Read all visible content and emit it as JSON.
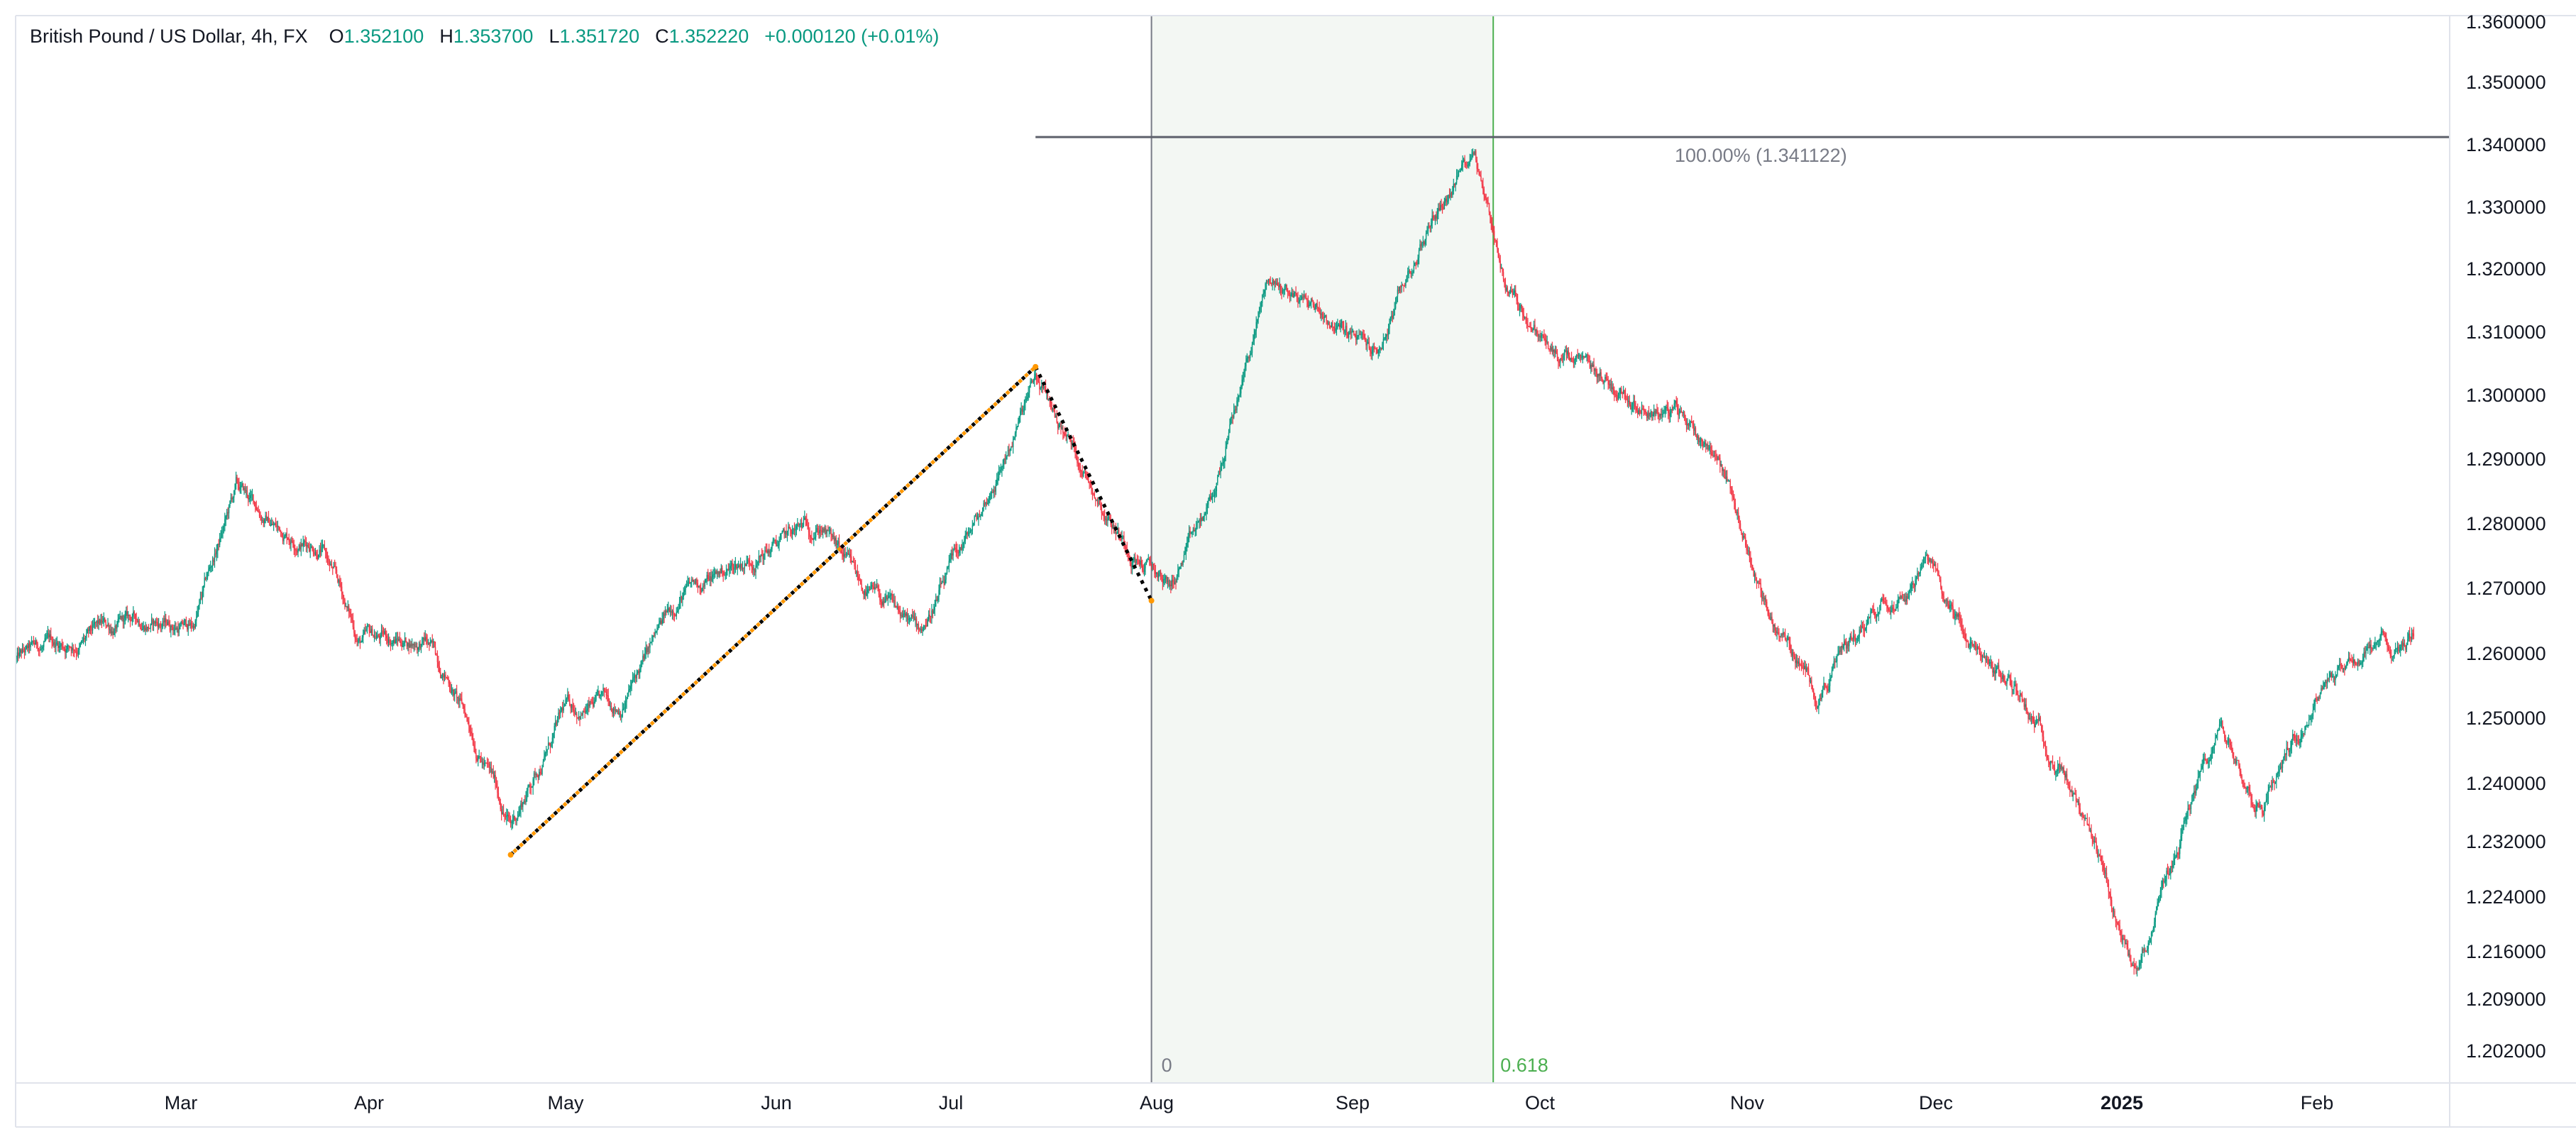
{
  "legend": {
    "symbol": "British Pound / US Dollar, 4h, FX",
    "o_label": "O",
    "o_value": "1.352100",
    "h_label": "H",
    "h_value": "1.353700",
    "l_label": "L",
    "l_value": "1.351720",
    "c_label": "C",
    "c_value": "1.352220",
    "change": "+0.000120 (+0.01%)"
  },
  "colors": {
    "up": "#089981",
    "down": "#f23645",
    "grid_border": "#e0e3eb",
    "fib_zone": "#f3f7f3",
    "fib_zero_line": "#787b86",
    "fib_618_line": "#4caf50",
    "level_line": "#5d606b",
    "pattern_black": "#000000",
    "pattern_orange": "#ff9800"
  },
  "chart_data": {
    "type": "candlestick",
    "x_axis": {
      "labels": [
        {
          "text": "Mar",
          "date": "2024-03"
        },
        {
          "text": "Apr",
          "date": "2024-04"
        },
        {
          "text": "May",
          "date": "2024-05"
        },
        {
          "text": "Jun",
          "date": "2024-06"
        },
        {
          "text": "Jul",
          "date": "2024-07"
        },
        {
          "text": "Aug",
          "date": "2024-08"
        },
        {
          "text": "Sep",
          "date": "2024-09"
        },
        {
          "text": "Oct",
          "date": "2024-10"
        },
        {
          "text": "Nov",
          "date": "2024-11"
        },
        {
          "text": "Dec",
          "date": "2024-12"
        },
        {
          "text": "2025",
          "date": "2025-01",
          "bold": true
        },
        {
          "text": "Feb",
          "date": "2025-02"
        }
      ],
      "range": [
        "2024-02-01",
        "2025-02-28"
      ]
    },
    "y_axis": {
      "ticks": [
        "1.360000",
        "1.350000",
        "1.340000",
        "1.330000",
        "1.320000",
        "1.310000",
        "1.300000",
        "1.290000",
        "1.280000",
        "1.270000",
        "1.260000",
        "1.250000",
        "1.240000",
        "1.232000",
        "1.224000",
        "1.216000",
        "1.209000",
        "1.202000"
      ]
    },
    "price_path": [
      {
        "date": "2024-02-01",
        "price": 1.259
      },
      {
        "date": "2024-02-12",
        "price": 1.262
      },
      {
        "date": "2024-02-22",
        "price": 1.265
      },
      {
        "date": "2024-03-01",
        "price": 1.264
      },
      {
        "date": "2024-03-08",
        "price": 1.285
      },
      {
        "date": "2024-03-15",
        "price": 1.279
      },
      {
        "date": "2024-03-22",
        "price": 1.277
      },
      {
        "date": "2024-03-28",
        "price": 1.262
      },
      {
        "date": "2024-04-08",
        "price": 1.262
      },
      {
        "date": "2024-04-12",
        "price": 1.256
      },
      {
        "date": "2024-04-22",
        "price": 1.234
      },
      {
        "date": "2024-05-01",
        "price": 1.251
      },
      {
        "date": "2024-05-10",
        "price": 1.252
      },
      {
        "date": "2024-05-20",
        "price": 1.269
      },
      {
        "date": "2024-06-03",
        "price": 1.276
      },
      {
        "date": "2024-06-12",
        "price": 1.28
      },
      {
        "date": "2024-06-18",
        "price": 1.27
      },
      {
        "date": "2024-06-28",
        "price": 1.263
      },
      {
        "date": "2024-07-08",
        "price": 1.281
      },
      {
        "date": "2024-07-17",
        "price": 1.302
      },
      {
        "date": "2024-07-24",
        "price": 1.29
      },
      {
        "date": "2024-08-01",
        "price": 1.277
      },
      {
        "date": "2024-08-08",
        "price": 1.27
      },
      {
        "date": "2024-08-15",
        "price": 1.283
      },
      {
        "date": "2024-08-24",
        "price": 1.318
      },
      {
        "date": "2024-09-01",
        "price": 1.314
      },
      {
        "date": "2024-09-11",
        "price": 1.306
      },
      {
        "date": "2024-09-20",
        "price": 1.328
      },
      {
        "date": "2024-09-27",
        "price": 1.34
      },
      {
        "date": "2024-10-02",
        "price": 1.318
      },
      {
        "date": "2024-10-10",
        "price": 1.306
      },
      {
        "date": "2024-10-18",
        "price": 1.302
      },
      {
        "date": "2024-10-30",
        "price": 1.297
      },
      {
        "date": "2024-11-06",
        "price": 1.291
      },
      {
        "date": "2024-11-14",
        "price": 1.266
      },
      {
        "date": "2024-11-22",
        "price": 1.254
      },
      {
        "date": "2024-12-02",
        "price": 1.268
      },
      {
        "date": "2024-12-10",
        "price": 1.274
      },
      {
        "date": "2024-12-18",
        "price": 1.26
      },
      {
        "date": "2024-12-26",
        "price": 1.253
      },
      {
        "date": "2025-01-02",
        "price": 1.241
      },
      {
        "date": "2025-01-13",
        "price": 1.212
      },
      {
        "date": "2025-01-22",
        "price": 1.237
      },
      {
        "date": "2025-01-27",
        "price": 1.248
      },
      {
        "date": "2025-02-03",
        "price": 1.238
      },
      {
        "date": "2025-02-14",
        "price": 1.258
      },
      {
        "date": "2025-02-28",
        "price": 1.263
      }
    ],
    "drawings": {
      "pattern_points": [
        {
          "date": "2024-04-22",
          "price": 1.23
        },
        {
          "date": "2024-07-17",
          "price": 1.3044
        },
        {
          "date": "2024-08-05",
          "price": 1.268
        }
      ],
      "fib_time_zone": {
        "start_date": "2024-08-05",
        "end_date": "2024-09-30",
        "start_label": "0",
        "end_label": "0.618"
      },
      "horizontal_level": {
        "start_date": "2024-07-17",
        "price": 1.341122,
        "label": "100.00% (1.341122)"
      }
    }
  }
}
